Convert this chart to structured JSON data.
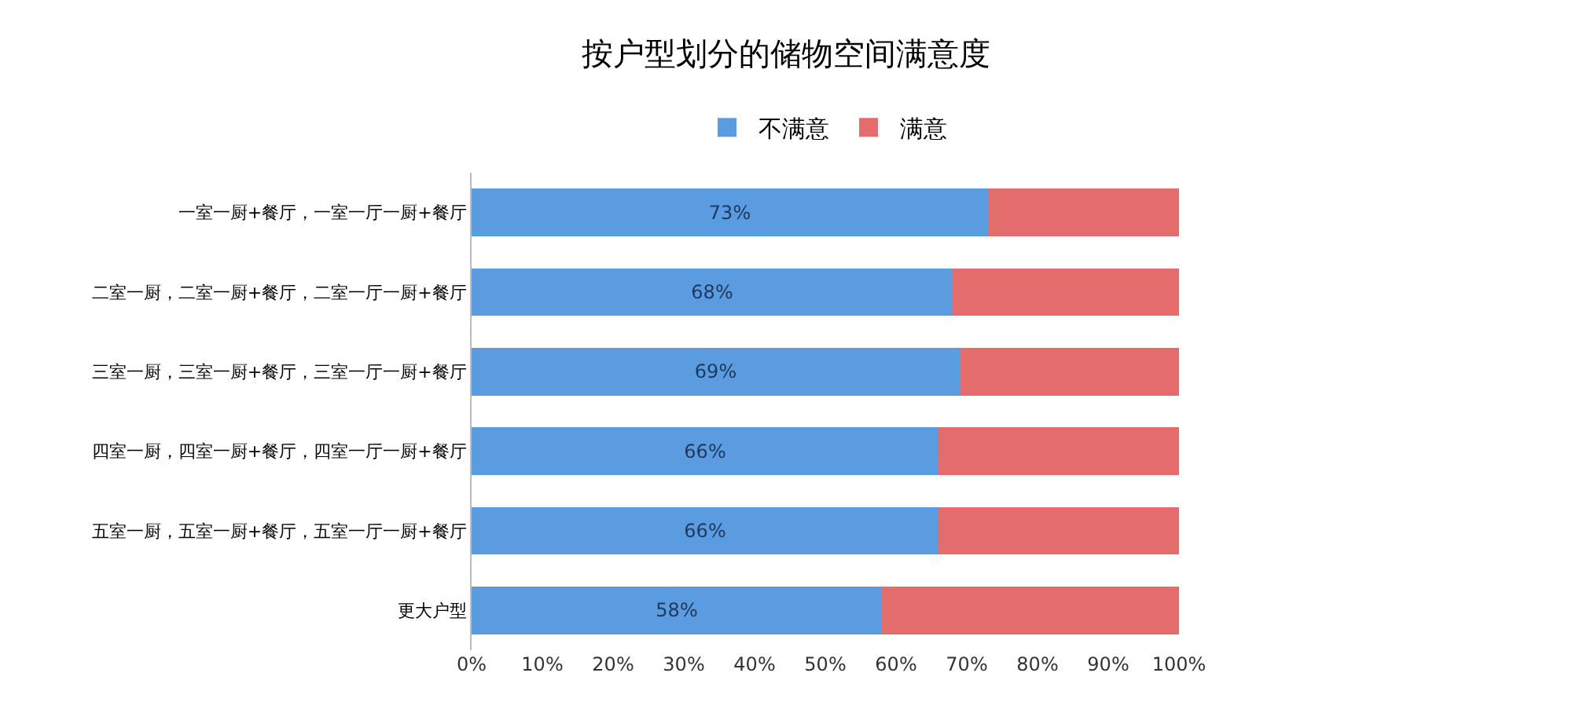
{
  "chart_data": {
    "type": "bar",
    "orientation": "horizontal",
    "stacked": true,
    "title": "按户型划分的储物空间满意度",
    "categories": [
      "一室一厨+餐厅，一室一厅一厨+餐厅",
      "二室一厨，二室一厨+餐厅，二室一厅一厨+餐厅",
      "三室一厨，三室一厨+餐厅，三室一厅一厨+餐厅",
      "四室一厨，四室一厨+餐厅，四室一厅一厨+餐厅",
      "五室一厨，五室一厨+餐厅，五室一厅一厨+餐厅",
      "更大户型"
    ],
    "series": [
      {
        "name": "不满意",
        "color": "#5b9be0",
        "values": [
          73,
          68,
          69,
          66,
          66,
          58
        ],
        "value_labels": [
          "73%",
          "68%",
          "69%",
          "66%",
          "66%",
          "58%"
        ]
      },
      {
        "name": "满意",
        "color": "#e46c6c",
        "values": [
          27,
          32,
          31,
          34,
          34,
          42
        ]
      }
    ],
    "xlim": [
      0,
      100
    ],
    "xticks": [
      {
        "value": 0,
        "label": "0%"
      },
      {
        "value": 10,
        "label": "10%"
      },
      {
        "value": 20,
        "label": "20%"
      },
      {
        "value": 30,
        "label": "30%"
      },
      {
        "value": 40,
        "label": "40%"
      },
      {
        "value": 50,
        "label": "50%"
      },
      {
        "value": 60,
        "label": "60%"
      },
      {
        "value": 70,
        "label": "70%"
      },
      {
        "value": 80,
        "label": "80%"
      },
      {
        "value": 90,
        "label": "90%"
      },
      {
        "value": 100,
        "label": "100%"
      }
    ],
    "legend": "top"
  }
}
